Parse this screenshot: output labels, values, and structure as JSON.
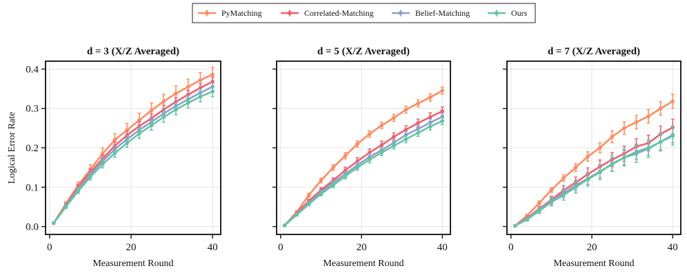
{
  "legend": {
    "items": [
      {
        "name": "PyMatching",
        "color": "#fc8d62"
      },
      {
        "name": "Correlated-Matching",
        "color": "#f0606c"
      },
      {
        "name": "Belief-Matching",
        "color": "#8da0cb"
      },
      {
        "name": "Ours",
        "color": "#66c2a5"
      }
    ]
  },
  "chart_data": [
    {
      "type": "line",
      "title": "d = 3 (X/Z Averaged)",
      "xlabel": "Measurement Round",
      "ylabel": "Logical Error Rate",
      "xlim": [
        -1,
        42
      ],
      "ylim": [
        -0.02,
        0.42
      ],
      "xticks": [
        0,
        20,
        40
      ],
      "yticks": [
        0.0,
        0.1,
        0.2,
        0.3,
        0.4
      ],
      "ytick_labels": [
        "0.0",
        "0.1",
        "0.2",
        "0.3",
        "0.4"
      ],
      "x": [
        1,
        4,
        7,
        10,
        13,
        16,
        19,
        22,
        25,
        28,
        31,
        34,
        37,
        40
      ],
      "series": [
        {
          "name": "PyMatching",
          "values": [
            0.009,
            0.058,
            0.105,
            0.145,
            0.185,
            0.22,
            0.245,
            0.27,
            0.295,
            0.318,
            0.338,
            0.355,
            0.372,
            0.386
          ],
          "errors": [
            0.002,
            0.005,
            0.008,
            0.012,
            0.015,
            0.016,
            0.017,
            0.018,
            0.019,
            0.018,
            0.019,
            0.019,
            0.019,
            0.018
          ]
        },
        {
          "name": "Correlated-Matching",
          "values": [
            0.009,
            0.054,
            0.1,
            0.138,
            0.172,
            0.205,
            0.232,
            0.255,
            0.275,
            0.297,
            0.317,
            0.335,
            0.352,
            0.368
          ],
          "errors": [
            0.002,
            0.004,
            0.006,
            0.008,
            0.009,
            0.01,
            0.01,
            0.011,
            0.011,
            0.011,
            0.011,
            0.011,
            0.011,
            0.011
          ]
        },
        {
          "name": "Belief-Matching",
          "values": [
            0.009,
            0.052,
            0.095,
            0.132,
            0.166,
            0.196,
            0.222,
            0.245,
            0.266,
            0.287,
            0.306,
            0.323,
            0.34,
            0.355
          ],
          "errors": [
            0.002,
            0.004,
            0.005,
            0.007,
            0.008,
            0.009,
            0.009,
            0.01,
            0.01,
            0.01,
            0.01,
            0.01,
            0.01,
            0.01
          ]
        },
        {
          "name": "Ours",
          "values": [
            0.009,
            0.05,
            0.09,
            0.126,
            0.158,
            0.186,
            0.212,
            0.236,
            0.257,
            0.278,
            0.297,
            0.314,
            0.33,
            0.343
          ],
          "errors": [
            0.002,
            0.004,
            0.006,
            0.008,
            0.009,
            0.01,
            0.011,
            0.012,
            0.012,
            0.013,
            0.013,
            0.013,
            0.013,
            0.013
          ]
        }
      ]
    },
    {
      "type": "line",
      "title": "d = 5 (X/Z Averaged)",
      "xlabel": "Measurement Round",
      "ylabel": "",
      "xlim": [
        -1,
        42
      ],
      "ylim": [
        -0.02,
        0.42
      ],
      "xticks": [
        0,
        20,
        40
      ],
      "yticks": [
        0.0,
        0.1,
        0.2,
        0.3,
        0.4
      ],
      "ytick_labels": [],
      "x": [
        1,
        4,
        7,
        10,
        13,
        16,
        19,
        22,
        25,
        28,
        31,
        34,
        37,
        40
      ],
      "series": [
        {
          "name": "PyMatching",
          "values": [
            0.003,
            0.037,
            0.08,
            0.117,
            0.15,
            0.18,
            0.21,
            0.235,
            0.257,
            0.276,
            0.297,
            0.313,
            0.328,
            0.345
          ],
          "errors": [
            0.001,
            0.003,
            0.005,
            0.006,
            0.007,
            0.008,
            0.008,
            0.008,
            0.008,
            0.009,
            0.009,
            0.009,
            0.009,
            0.009
          ]
        },
        {
          "name": "Correlated-Matching",
          "values": [
            0.003,
            0.035,
            0.065,
            0.093,
            0.117,
            0.143,
            0.166,
            0.188,
            0.207,
            0.228,
            0.246,
            0.263,
            0.278,
            0.293
          ],
          "errors": [
            0.001,
            0.003,
            0.005,
            0.006,
            0.007,
            0.008,
            0.009,
            0.009,
            0.01,
            0.01,
            0.01,
            0.01,
            0.011,
            0.011
          ]
        },
        {
          "name": "Belief-Matching",
          "values": [
            0.003,
            0.032,
            0.06,
            0.088,
            0.111,
            0.134,
            0.156,
            0.177,
            0.194,
            0.213,
            0.233,
            0.248,
            0.264,
            0.279
          ],
          "errors": [
            0.001,
            0.003,
            0.004,
            0.005,
            0.006,
            0.007,
            0.007,
            0.008,
            0.008,
            0.009,
            0.009,
            0.009,
            0.009,
            0.009
          ]
        },
        {
          "name": "Ours",
          "values": [
            0.003,
            0.03,
            0.057,
            0.083,
            0.105,
            0.128,
            0.15,
            0.17,
            0.188,
            0.205,
            0.222,
            0.238,
            0.254,
            0.268
          ],
          "errors": [
            0.001,
            0.003,
            0.004,
            0.005,
            0.006,
            0.007,
            0.007,
            0.008,
            0.008,
            0.008,
            0.009,
            0.009,
            0.009,
            0.009
          ]
        }
      ]
    },
    {
      "type": "line",
      "title": "d = 7 (X/Z Averaged)",
      "xlabel": "Measurement Round",
      "ylabel": "",
      "xlim": [
        -1,
        42
      ],
      "ylim": [
        -0.02,
        0.42
      ],
      "xticks": [
        0,
        20,
        40
      ],
      "yticks": [
        0.0,
        0.1,
        0.2,
        0.3,
        0.4
      ],
      "ytick_labels": [],
      "x": [
        1,
        4,
        7,
        10,
        13,
        16,
        19,
        22,
        25,
        28,
        31,
        34,
        37,
        40
      ],
      "series": [
        {
          "name": "PyMatching",
          "values": [
            0.002,
            0.028,
            0.06,
            0.093,
            0.123,
            0.15,
            0.178,
            0.2,
            0.228,
            0.25,
            0.265,
            0.28,
            0.3,
            0.318
          ],
          "errors": [
            0.001,
            0.003,
            0.005,
            0.006,
            0.008,
            0.01,
            0.012,
            0.013,
            0.015,
            0.016,
            0.017,
            0.017,
            0.017,
            0.018
          ]
        },
        {
          "name": "Correlated-Matching",
          "values": [
            0.002,
            0.022,
            0.045,
            0.068,
            0.092,
            0.112,
            0.133,
            0.152,
            0.17,
            0.185,
            0.203,
            0.212,
            0.235,
            0.252
          ],
          "errors": [
            0.001,
            0.004,
            0.006,
            0.009,
            0.012,
            0.014,
            0.016,
            0.017,
            0.018,
            0.019,
            0.02,
            0.02,
            0.02,
            0.021
          ]
        },
        {
          "name": "Belief-Matching",
          "values": [
            0.002,
            0.02,
            0.042,
            0.065,
            0.085,
            0.105,
            0.122,
            0.14,
            0.158,
            0.175,
            0.19,
            0.2,
            0.215,
            0.233
          ],
          "errors": [
            0.001,
            0.004,
            0.006,
            0.009,
            0.011,
            0.013,
            0.015,
            0.016,
            0.017,
            0.018,
            0.019,
            0.019,
            0.02,
            0.02
          ]
        },
        {
          "name": "Ours",
          "values": [
            0.002,
            0.018,
            0.04,
            0.062,
            0.08,
            0.1,
            0.12,
            0.138,
            0.16,
            0.175,
            0.185,
            0.198,
            0.215,
            0.23
          ],
          "errors": [
            0.001,
            0.004,
            0.007,
            0.01,
            0.013,
            0.015,
            0.017,
            0.019,
            0.02,
            0.021,
            0.022,
            0.022,
            0.023,
            0.023
          ]
        }
      ]
    }
  ]
}
